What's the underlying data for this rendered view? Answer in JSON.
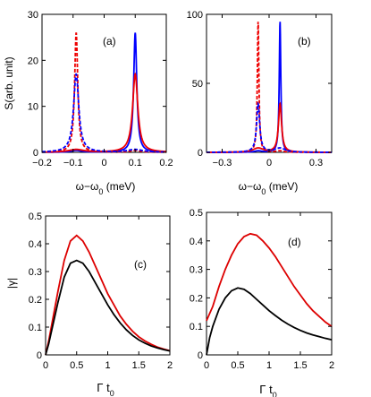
{
  "chart_data": [
    {
      "id": "a",
      "type": "line",
      "panel_label": "(a)",
      "xlabel": "ω−ω0 (meV)",
      "ylabel": "S(arb. unit)",
      "xlim": [
        -0.2,
        0.2
      ],
      "ylim": [
        0,
        30
      ],
      "xticks": [
        -0.2,
        -0.1,
        0,
        0.1,
        0.2
      ],
      "xticklabels": [
        "−0.2",
        "−0.1",
        "0",
        "0.1",
        "0.2"
      ],
      "yticks": [
        0,
        10,
        20,
        30
      ],
      "yticklabels": [
        "0",
        "10",
        "20",
        "30"
      ],
      "grid": false,
      "series": [
        {
          "color": "#0000ff",
          "dash": "solid",
          "peaks": [
            {
              "x0": 0.1,
              "amp": 26,
              "width": 0.006
            },
            {
              "x0": -0.09,
              "amp": 0.4,
              "width": 0.02
            }
          ]
        },
        {
          "color": "#ee0000",
          "dash": "solid",
          "peaks": [
            {
              "x0": 0.1,
              "amp": 17,
              "width": 0.01
            },
            {
              "x0": -0.09,
              "amp": 0.6,
              "width": 0.03
            }
          ]
        },
        {
          "color": "#ee0000",
          "dash": "dashed",
          "peaks": [
            {
              "x0": -0.09,
              "amp": 26,
              "width": 0.006
            },
            {
              "x0": 0.1,
              "amp": 0.4,
              "width": 0.02
            }
          ]
        },
        {
          "color": "#0000ff",
          "dash": "dashed",
          "peaks": [
            {
              "x0": -0.09,
              "amp": 17,
              "width": 0.01
            },
            {
              "x0": 0.1,
              "amp": 0.6,
              "width": 0.03
            }
          ]
        }
      ]
    },
    {
      "id": "b",
      "type": "line",
      "panel_label": "(b)",
      "xlabel": "ω−ω0 (meV)",
      "ylabel": "",
      "xlim": [
        -0.4,
        0.4
      ],
      "ylim": [
        0,
        100
      ],
      "xticks": [
        -0.3,
        0,
        0.3
      ],
      "xticklabels": [
        "−0.3",
        "0",
        "0.3"
      ],
      "yticks": [
        0,
        50,
        100
      ],
      "yticklabels": [
        "0",
        "50",
        "100"
      ],
      "grid": false,
      "series": [
        {
          "color": "#0000ff",
          "dash": "solid",
          "peaks": [
            {
              "x0": 0.07,
              "amp": 95,
              "width": 0.006
            },
            {
              "x0": -0.07,
              "amp": 1,
              "width": 0.03
            }
          ]
        },
        {
          "color": "#ee0000",
          "dash": "solid",
          "peaks": [
            {
              "x0": 0.07,
              "amp": 35,
              "width": 0.012
            },
            {
              "x0": -0.07,
              "amp": 3,
              "width": 0.04
            }
          ]
        },
        {
          "color": "#ee0000",
          "dash": "dashed",
          "peaks": [
            {
              "x0": -0.07,
              "amp": 95,
              "width": 0.006
            },
            {
              "x0": 0.07,
              "amp": 1,
              "width": 0.03
            }
          ]
        },
        {
          "color": "#0000ff",
          "dash": "dashed",
          "peaks": [
            {
              "x0": -0.07,
              "amp": 35,
              "width": 0.012
            },
            {
              "x0": 0.07,
              "amp": 3,
              "width": 0.04
            }
          ]
        }
      ]
    },
    {
      "id": "c",
      "type": "line",
      "panel_label": "(c)",
      "xlabel": "Γt0",
      "ylabel": "|γ|",
      "xlim": [
        0,
        2
      ],
      "ylim": [
        0,
        0.5
      ],
      "xticks": [
        0,
        0.5,
        1,
        1.5,
        2
      ],
      "xticklabels": [
        "0",
        "0.5",
        "1",
        "1.5",
        "2"
      ],
      "yticks": [
        0,
        0.1,
        0.2,
        0.3,
        0.4,
        0.5
      ],
      "yticklabels": [
        "0",
        "0.1",
        "0.2",
        "0.3",
        "0.4",
        "0.5"
      ],
      "grid": false,
      "series": [
        {
          "color": "#dd0000",
          "x": [
            0,
            0.05,
            0.1,
            0.2,
            0.3,
            0.4,
            0.5,
            0.6,
            0.7,
            0.8,
            0.9,
            1.0,
            1.1,
            1.2,
            1.3,
            1.4,
            1.5,
            1.6,
            1.7,
            1.8,
            1.9,
            2.0
          ],
          "y": [
            0,
            0.05,
            0.11,
            0.23,
            0.34,
            0.41,
            0.43,
            0.41,
            0.37,
            0.32,
            0.27,
            0.22,
            0.18,
            0.14,
            0.11,
            0.085,
            0.065,
            0.05,
            0.038,
            0.028,
            0.021,
            0.015
          ]
        },
        {
          "color": "#000000",
          "x": [
            0,
            0.05,
            0.1,
            0.2,
            0.3,
            0.4,
            0.5,
            0.6,
            0.7,
            0.8,
            0.9,
            1.0,
            1.1,
            1.2,
            1.3,
            1.4,
            1.5,
            1.6,
            1.7,
            1.8,
            1.9,
            2.0
          ],
          "y": [
            0,
            0.04,
            0.09,
            0.19,
            0.28,
            0.33,
            0.34,
            0.33,
            0.3,
            0.26,
            0.22,
            0.18,
            0.145,
            0.115,
            0.09,
            0.07,
            0.054,
            0.042,
            0.032,
            0.025,
            0.019,
            0.014
          ]
        }
      ]
    },
    {
      "id": "d",
      "type": "line",
      "panel_label": "(d)",
      "xlabel": "Γt0",
      "ylabel": "",
      "xlim": [
        0,
        2
      ],
      "ylim": [
        0,
        0.5
      ],
      "xticks": [
        0,
        0.5,
        1,
        1.5,
        2
      ],
      "xticklabels": [
        "0",
        "0.5",
        "1",
        "1.5",
        "2"
      ],
      "yticks": [
        0,
        0.1,
        0.2,
        0.3,
        0.4,
        0.5
      ],
      "yticklabels": [
        "0",
        "0.1",
        "0.2",
        "0.3",
        "0.4",
        "0.5"
      ],
      "grid": false,
      "series": [
        {
          "color": "#dd0000",
          "x": [
            0,
            0.1,
            0.2,
            0.3,
            0.4,
            0.5,
            0.6,
            0.7,
            0.8,
            0.9,
            1.0,
            1.1,
            1.2,
            1.3,
            1.4,
            1.5,
            1.6,
            1.7,
            1.8,
            1.9,
            2.0
          ],
          "y": [
            0.12,
            0.17,
            0.24,
            0.3,
            0.35,
            0.39,
            0.415,
            0.425,
            0.42,
            0.4,
            0.375,
            0.345,
            0.31,
            0.275,
            0.24,
            0.21,
            0.18,
            0.155,
            0.135,
            0.115,
            0.1
          ]
        },
        {
          "color": "#000000",
          "x": [
            0,
            0.05,
            0.1,
            0.2,
            0.3,
            0.4,
            0.5,
            0.6,
            0.7,
            0.8,
            0.9,
            1.0,
            1.1,
            1.2,
            1.3,
            1.4,
            1.5,
            1.6,
            1.7,
            1.8,
            1.9,
            2.0
          ],
          "y": [
            0,
            0.06,
            0.1,
            0.16,
            0.2,
            0.225,
            0.235,
            0.23,
            0.215,
            0.195,
            0.175,
            0.155,
            0.138,
            0.122,
            0.108,
            0.096,
            0.086,
            0.077,
            0.07,
            0.064,
            0.058,
            0.053
          ]
        }
      ]
    }
  ]
}
